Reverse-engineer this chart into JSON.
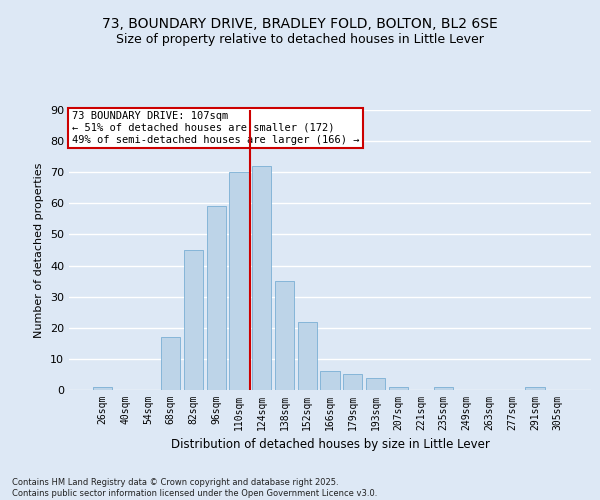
{
  "title1": "73, BOUNDARY DRIVE, BRADLEY FOLD, BOLTON, BL2 6SE",
  "title2": "Size of property relative to detached houses in Little Lever",
  "xlabel": "Distribution of detached houses by size in Little Lever",
  "ylabel": "Number of detached properties",
  "categories": [
    "26sqm",
    "40sqm",
    "54sqm",
    "68sqm",
    "82sqm",
    "96sqm",
    "110sqm",
    "124sqm",
    "138sqm",
    "152sqm",
    "166sqm",
    "179sqm",
    "193sqm",
    "207sqm",
    "221sqm",
    "235sqm",
    "249sqm",
    "263sqm",
    "277sqm",
    "291sqm",
    "305sqm"
  ],
  "values": [
    1,
    0,
    0,
    17,
    45,
    59,
    70,
    72,
    35,
    22,
    6,
    5,
    4,
    1,
    0,
    1,
    0,
    0,
    0,
    1,
    0
  ],
  "bar_color": "#bdd4e8",
  "bar_edgecolor": "#7aafd4",
  "vline_color": "#cc0000",
  "vline_pos": 6.5,
  "annotation_text": "73 BOUNDARY DRIVE: 107sqm\n← 51% of detached houses are smaller (172)\n49% of semi-detached houses are larger (166) →",
  "annotation_box_color": "#ffffff",
  "annotation_box_edgecolor": "#cc0000",
  "annotation_fontsize": 7.5,
  "yticks": [
    0,
    10,
    20,
    30,
    40,
    50,
    60,
    70,
    80,
    90
  ],
  "ylim": [
    0,
    90
  ],
  "bg_color": "#dde8f5",
  "plot_bg_color": "#dde8f5",
  "grid_color": "#ffffff",
  "footer": "Contains HM Land Registry data © Crown copyright and database right 2025.\nContains public sector information licensed under the Open Government Licence v3.0.",
  "title_fontsize": 10,
  "subtitle_fontsize": 9,
  "xlabel_fontsize": 8.5,
  "ylabel_fontsize": 8,
  "tick_fontsize": 7,
  "footer_fontsize": 6
}
